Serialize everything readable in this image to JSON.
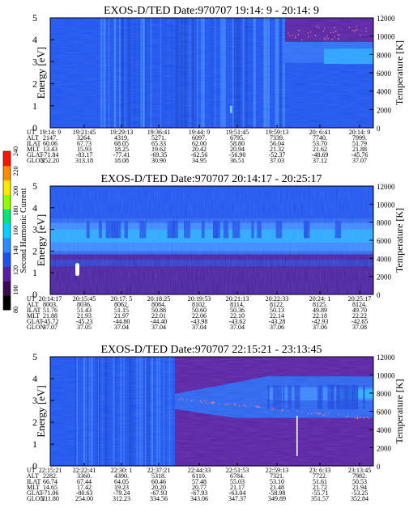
{
  "colorbar": {
    "label": "Second Harmonic Current",
    "ticks": [
      "80",
      "100",
      "120",
      "140",
      "160",
      "180",
      "200",
      "220",
      "240"
    ]
  },
  "chart_data": [
    {
      "type": "heatmap",
      "title": "EXOS-D/TED   Date:970707  19:14: 9 - 20:14: 9",
      "ylabel": "Energy [eV]",
      "y2label": "Temperature [K]",
      "ylim": [
        0,
        5
      ],
      "y_ticks": [
        "0",
        "1",
        "2",
        "3",
        "4",
        "5"
      ],
      "y2lim": [
        0,
        12000
      ],
      "y2_ticks": [
        "0",
        "2000",
        "4000",
        "6000",
        "8000",
        "10000",
        "12000"
      ],
      "ephemeris_labels": [
        "UT",
        "ALT",
        "ILAT",
        "MLT",
        "GLAT",
        "GLON"
      ],
      "ephemeris_columns": [
        [
          "19:14: 9",
          "2147.",
          "60.06",
          "13.43",
          "-71.84",
          "252.20"
        ],
        [
          "19:21:45",
          "3264.",
          "67.73",
          "15.93",
          "-83.17",
          "313.18"
        ],
        [
          "19:29:13",
          "4319.",
          "68.05",
          "18.25",
          "-77.41",
          "18.08"
        ],
        [
          "19:36:41",
          "5271.",
          "65.33",
          "19.62",
          "-69.35",
          "30.90"
        ],
        [
          "19:44: 9",
          "6097.",
          "62.00",
          "20.42",
          "-62.56",
          "34.95"
        ],
        [
          "19:51:45",
          "6795.",
          "58.80",
          "20.94",
          "-56.90",
          "36.51"
        ],
        [
          "19:59:13",
          "7339.",
          "56.04",
          "21.32",
          "-52.37",
          "37.03"
        ],
        [
          "20: 6:41",
          "7740.",
          "53.70",
          "21.62",
          "-48.69",
          "37.12"
        ],
        [
          "20:14: 9",
          "7999.",
          "51.79",
          "21.88",
          "-45.76",
          "37.07"
        ]
      ]
    },
    {
      "type": "heatmap",
      "title": "EXOS-D/TED   Date:970707  20:14:17 - 20:25:17",
      "ylabel": "Energy [eV]",
      "y2label": "Temperature [K]",
      "ylim": [
        0,
        5
      ],
      "y_ticks": [
        "0",
        "1",
        "2",
        "3",
        "4",
        "5"
      ],
      "y2lim": [
        0,
        12000
      ],
      "y2_ticks": [
        "0",
        "2000",
        "4000",
        "6000",
        "8000",
        "10000",
        "12000"
      ],
      "ephemeris_labels": [
        "UT",
        "ALT",
        "ILAT",
        "MLT",
        "GLAT",
        "GLON"
      ],
      "ephemeris_columns": [
        [
          "20:14:17",
          "8003.",
          "51.76",
          "21.88",
          "-45.72",
          "37.07"
        ],
        [
          "20:15:45",
          "8036.",
          "51.43",
          "21.93",
          "-45.23",
          "37.05"
        ],
        [
          "20:17: 5",
          "8062.",
          "51.15",
          "21.97",
          "-44.80",
          "37.04"
        ],
        [
          "20:18:25",
          "8084.",
          "50.88",
          "22.01",
          "-44.40",
          "37.04"
        ],
        [
          "20:19:53",
          "8102.",
          "50.60",
          "22.06",
          "-43.98",
          "37.04"
        ],
        [
          "20:21:13",
          "8114.",
          "50.36",
          "22.10",
          "-43.62",
          "37.04"
        ],
        [
          "20:22:33",
          "8122.",
          "50.13",
          "22.14",
          "-43.28",
          "37.06"
        ],
        [
          "20:24: 1",
          "8125.",
          "49.89",
          "22.18",
          "-42.93",
          "37.06"
        ],
        [
          "20:25:17",
          "8124.",
          "49.70",
          "22.22",
          "-42.65",
          "37.08"
        ]
      ]
    },
    {
      "type": "heatmap",
      "title": "EXOS-D/TED   Date:970707  22:15:21 - 23:13:45",
      "ylabel": "Energy [eV]",
      "y2label": "Temperature [K]",
      "ylim": [
        0,
        5
      ],
      "y_ticks": [
        "0",
        "1",
        "2",
        "3",
        "4",
        "5"
      ],
      "y2lim": [
        0,
        12000
      ],
      "y2_ticks": [
        "0",
        "2000",
        "4000",
        "6000",
        "8000",
        "10000",
        "12000"
      ],
      "ephemeris_labels": [
        "UT",
        "ALT",
        "ILAT",
        "MLT",
        "GLAT",
        "GLON"
      ],
      "ephemeris_columns": [
        [
          "22:15:21",
          "2282.",
          "66.74",
          "14.65",
          "-71.06",
          "211.80"
        ],
        [
          "22:22:41",
          "3360.",
          "67.44",
          "17.42",
          "-80.63",
          "254.00"
        ],
        [
          "22:30: 1",
          "4390.",
          "64.05",
          "19.23",
          "-79.24",
          "312.23"
        ],
        [
          "22:37:21",
          "5318.",
          "60.46",
          "20.20",
          "-67.93",
          "334.56"
        ],
        [
          "22:44:33",
          "6110.",
          "57.48",
          "20.77",
          "-67.93",
          "343.06"
        ],
        [
          "22:51:53",
          "6784.",
          "55.03",
          "21.17",
          "-63.04",
          "347.37"
        ],
        [
          "22:59:13",
          "7321.",
          "53.10",
          "21.48",
          "-58.98",
          "349.89"
        ],
        [
          "23: 6:33",
          "7722.",
          "51.61",
          "21.72",
          "-55.71",
          "351.57"
        ],
        [
          "23:13:45",
          "7982.",
          "50.53",
          "21.94",
          "-53.25",
          "352.84"
        ]
      ]
    }
  ]
}
